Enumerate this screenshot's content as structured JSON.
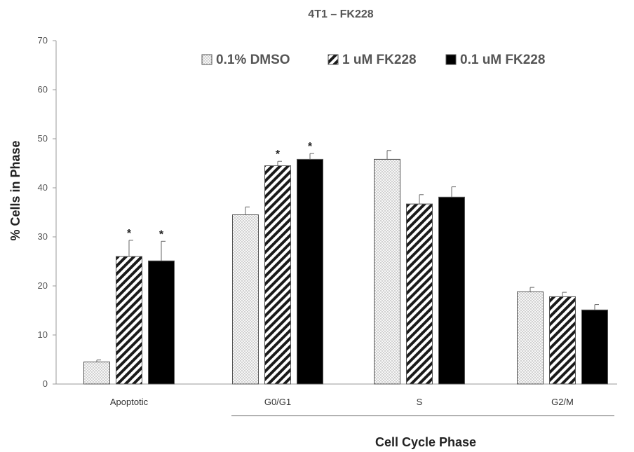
{
  "chart_data": {
    "type": "bar",
    "title": "4T1 – FK228",
    "xlabel": "Cell Cycle Phase",
    "ylabel": "% Cells in Phase",
    "ylim": [
      0,
      70
    ],
    "yticks": [
      0,
      10,
      20,
      30,
      40,
      50,
      60,
      70
    ],
    "categories": [
      "Apoptotic",
      "G0/G1",
      "S",
      "G2/M"
    ],
    "legend_position": "top",
    "grid": false,
    "series": [
      {
        "name": "0.1% DMSO",
        "pattern": "dotted",
        "color": "#f2f2f2",
        "values": [
          4.5,
          34.5,
          45.8,
          18.8
        ],
        "errors": [
          0.4,
          1.6,
          1.8,
          0.9
        ],
        "significant": [
          false,
          false,
          false,
          false
        ]
      },
      {
        "name": "1 uM FK228",
        "pattern": "diagonal-stripes",
        "color": "#222222",
        "values": [
          26.0,
          44.5,
          36.7,
          17.8
        ],
        "errors": [
          3.3,
          0.9,
          1.9,
          0.9
        ],
        "significant": [
          true,
          true,
          false,
          false
        ]
      },
      {
        "name": "0.1 uM FK228",
        "pattern": "solid",
        "color": "#000000",
        "values": [
          25.1,
          45.8,
          38.1,
          15.1
        ],
        "errors": [
          4.0,
          1.2,
          2.1,
          1.1
        ],
        "significant": [
          true,
          true,
          false,
          false
        ]
      }
    ],
    "significance_marker": "*"
  }
}
